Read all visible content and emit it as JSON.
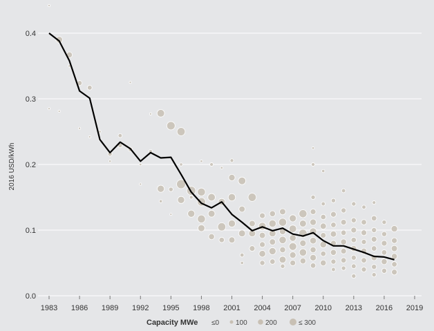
{
  "chart_data": {
    "type": "scatter",
    "ylabel": "2016 USD/kWh",
    "xlabel": "",
    "xlim": [
      1983,
      2019
    ],
    "ylim": [
      0,
      0.4
    ],
    "x_ticks": [
      "1983",
      "1986",
      "1989",
      "1992",
      "1995",
      "1998",
      "2001",
      "2004",
      "2007",
      "2010",
      "2013",
      "2016",
      "2019"
    ],
    "y_ticks": [
      "0.0",
      "0.1",
      "0.2",
      "0.3",
      "0.4"
    ],
    "grid": true,
    "colors": {
      "background": "#e5e6e8",
      "grid": "#ffffff",
      "bubble": "#c8c0b4",
      "bubble_light": "#ffffff",
      "line": "#000000"
    },
    "legend": {
      "title": "Capacity MWe",
      "placement": "bottom",
      "entries": [
        "≤0",
        "100",
        "200",
        "≤ 300"
      ]
    },
    "weighted_average": {
      "x": [
        1983,
        1984,
        1985,
        1986,
        1987,
        1988,
        1989,
        1990,
        1991,
        1992,
        1993,
        1994,
        1995,
        1996,
        1997,
        1998,
        1999,
        2000,
        2001,
        2002,
        2003,
        2004,
        2005,
        2006,
        2007,
        2008,
        2009,
        2010,
        2011,
        2012,
        2013,
        2014,
        2015,
        2016,
        2017
      ],
      "y": [
        0.4,
        0.388,
        0.358,
        0.312,
        0.301,
        0.238,
        0.218,
        0.234,
        0.224,
        0.205,
        0.218,
        0.21,
        0.211,
        0.185,
        0.158,
        0.141,
        0.134,
        0.143,
        0.124,
        0.112,
        0.099,
        0.105,
        0.099,
        0.103,
        0.094,
        0.091,
        0.096,
        0.084,
        0.076,
        0.076,
        0.071,
        0.066,
        0.06,
        0.059,
        0.055
      ]
    },
    "projects": [
      {
        "x": 1983,
        "y": 0.442,
        "c": 10
      },
      {
        "x": 1983,
        "y": 0.285,
        "c": 10
      },
      {
        "x": 1984,
        "y": 0.39,
        "c": 140
      },
      {
        "x": 1984,
        "y": 0.281,
        "c": 10
      },
      {
        "x": 1985,
        "y": 0.367,
        "c": 110
      },
      {
        "x": 1985,
        "y": 0.35,
        "c": 20
      },
      {
        "x": 1986,
        "y": 0.324,
        "c": 80
      },
      {
        "x": 1986,
        "y": 0.255,
        "c": 10
      },
      {
        "x": 1987,
        "y": 0.317,
        "c": 70
      },
      {
        "x": 1987,
        "y": 0.242,
        "c": 10
      },
      {
        "x": 1988,
        "y": 0.25,
        "c": 20
      },
      {
        "x": 1988,
        "y": 0.238,
        "c": 20
      },
      {
        "x": 1989,
        "y": 0.216,
        "c": 60
      },
      {
        "x": 1989,
        "y": 0.205,
        "c": 20
      },
      {
        "x": 1990,
        "y": 0.244,
        "c": 50
      },
      {
        "x": 1990,
        "y": 0.229,
        "c": 60
      },
      {
        "x": 1991,
        "y": 0.223,
        "c": 60
      },
      {
        "x": 1991,
        "y": 0.325,
        "c": 10
      },
      {
        "x": 1992,
        "y": 0.2,
        "c": 20
      },
      {
        "x": 1992,
        "y": 0.17,
        "c": 10
      },
      {
        "x": 1993,
        "y": 0.277,
        "c": 10
      },
      {
        "x": 1993,
        "y": 0.22,
        "c": 40
      },
      {
        "x": 1994,
        "y": 0.278,
        "c": 180
      },
      {
        "x": 1994,
        "y": 0.163,
        "c": 160
      },
      {
        "x": 1994,
        "y": 0.144,
        "c": 30
      },
      {
        "x": 1995,
        "y": 0.259,
        "c": 220
      },
      {
        "x": 1995,
        "y": 0.162,
        "c": 60
      },
      {
        "x": 1995,
        "y": 0.124,
        "c": 10
      },
      {
        "x": 1996,
        "y": 0.25,
        "c": 210
      },
      {
        "x": 1996,
        "y": 0.17,
        "c": 260
      },
      {
        "x": 1996,
        "y": 0.146,
        "c": 160
      },
      {
        "x": 1996,
        "y": 0.2,
        "c": 30
      },
      {
        "x": 1997,
        "y": 0.16,
        "c": 250
      },
      {
        "x": 1997,
        "y": 0.125,
        "c": 160
      },
      {
        "x": 1997,
        "y": 0.15,
        "c": 40
      },
      {
        "x": 1998,
        "y": 0.158,
        "c": 200
      },
      {
        "x": 1998,
        "y": 0.143,
        "c": 220
      },
      {
        "x": 1998,
        "y": 0.117,
        "c": 200
      },
      {
        "x": 1998,
        "y": 0.103,
        "c": 150
      },
      {
        "x": 1998,
        "y": 0.205,
        "c": 20
      },
      {
        "x": 1999,
        "y": 0.15,
        "c": 180
      },
      {
        "x": 1999,
        "y": 0.125,
        "c": 150
      },
      {
        "x": 1999,
        "y": 0.09,
        "c": 110
      },
      {
        "x": 1999,
        "y": 0.2,
        "c": 40
      },
      {
        "x": 2000,
        "y": 0.143,
        "c": 150
      },
      {
        "x": 2000,
        "y": 0.105,
        "c": 210
      },
      {
        "x": 2000,
        "y": 0.085,
        "c": 90
      },
      {
        "x": 2000,
        "y": 0.195,
        "c": 20
      },
      {
        "x": 2001,
        "y": 0.18,
        "c": 130
      },
      {
        "x": 2001,
        "y": 0.15,
        "c": 170
      },
      {
        "x": 2001,
        "y": 0.11,
        "c": 160
      },
      {
        "x": 2001,
        "y": 0.085,
        "c": 120
      },
      {
        "x": 2001,
        "y": 0.206,
        "c": 40
      },
      {
        "x": 2002,
        "y": 0.175,
        "c": 180
      },
      {
        "x": 2002,
        "y": 0.132,
        "c": 120
      },
      {
        "x": 2002,
        "y": 0.095,
        "c": 150
      },
      {
        "x": 2002,
        "y": 0.062,
        "c": 50
      },
      {
        "x": 2002,
        "y": 0.05,
        "c": 30
      },
      {
        "x": 2003,
        "y": 0.15,
        "c": 210
      },
      {
        "x": 2003,
        "y": 0.11,
        "c": 120
      },
      {
        "x": 2003,
        "y": 0.095,
        "c": 150
      },
      {
        "x": 2003,
        "y": 0.072,
        "c": 100
      },
      {
        "x": 2004,
        "y": 0.122,
        "c": 100
      },
      {
        "x": 2004,
        "y": 0.106,
        "c": 180
      },
      {
        "x": 2004,
        "y": 0.092,
        "c": 120
      },
      {
        "x": 2004,
        "y": 0.078,
        "c": 100
      },
      {
        "x": 2004,
        "y": 0.064,
        "c": 140
      },
      {
        "x": 2004,
        "y": 0.05,
        "c": 80
      },
      {
        "x": 2005,
        "y": 0.125,
        "c": 110
      },
      {
        "x": 2005,
        "y": 0.11,
        "c": 170
      },
      {
        "x": 2005,
        "y": 0.095,
        "c": 150
      },
      {
        "x": 2005,
        "y": 0.082,
        "c": 120
      },
      {
        "x": 2005,
        "y": 0.068,
        "c": 160
      },
      {
        "x": 2005,
        "y": 0.052,
        "c": 90
      },
      {
        "x": 2006,
        "y": 0.128,
        "c": 120
      },
      {
        "x": 2006,
        "y": 0.112,
        "c": 200
      },
      {
        "x": 2006,
        "y": 0.098,
        "c": 130
      },
      {
        "x": 2006,
        "y": 0.085,
        "c": 170
      },
      {
        "x": 2006,
        "y": 0.07,
        "c": 110
      },
      {
        "x": 2006,
        "y": 0.055,
        "c": 150
      },
      {
        "x": 2006,
        "y": 0.045,
        "c": 60
      },
      {
        "x": 2007,
        "y": 0.118,
        "c": 160
      },
      {
        "x": 2007,
        "y": 0.102,
        "c": 180
      },
      {
        "x": 2007,
        "y": 0.088,
        "c": 140
      },
      {
        "x": 2007,
        "y": 0.075,
        "c": 190
      },
      {
        "x": 2007,
        "y": 0.062,
        "c": 130
      },
      {
        "x": 2007,
        "y": 0.05,
        "c": 100
      },
      {
        "x": 2008,
        "y": 0.125,
        "c": 200
      },
      {
        "x": 2008,
        "y": 0.11,
        "c": 150
      },
      {
        "x": 2008,
        "y": 0.095,
        "c": 210
      },
      {
        "x": 2008,
        "y": 0.08,
        "c": 130
      },
      {
        "x": 2008,
        "y": 0.066,
        "c": 170
      },
      {
        "x": 2008,
        "y": 0.053,
        "c": 110
      },
      {
        "x": 2009,
        "y": 0.225,
        "c": 20
      },
      {
        "x": 2009,
        "y": 0.2,
        "c": 40
      },
      {
        "x": 2009,
        "y": 0.15,
        "c": 60
      },
      {
        "x": 2009,
        "y": 0.128,
        "c": 100
      },
      {
        "x": 2009,
        "y": 0.112,
        "c": 130
      },
      {
        "x": 2009,
        "y": 0.098,
        "c": 160
      },
      {
        "x": 2009,
        "y": 0.084,
        "c": 140
      },
      {
        "x": 2009,
        "y": 0.07,
        "c": 110
      },
      {
        "x": 2009,
        "y": 0.058,
        "c": 130
      },
      {
        "x": 2009,
        "y": 0.046,
        "c": 90
      },
      {
        "x": 2010,
        "y": 0.19,
        "c": 30
      },
      {
        "x": 2010,
        "y": 0.14,
        "c": 50
      },
      {
        "x": 2010,
        "y": 0.12,
        "c": 90
      },
      {
        "x": 2010,
        "y": 0.106,
        "c": 120
      },
      {
        "x": 2010,
        "y": 0.092,
        "c": 100
      },
      {
        "x": 2010,
        "y": 0.078,
        "c": 140
      },
      {
        "x": 2010,
        "y": 0.064,
        "c": 90
      },
      {
        "x": 2010,
        "y": 0.05,
        "c": 110
      },
      {
        "x": 2011,
        "y": 0.145,
        "c": 60
      },
      {
        "x": 2011,
        "y": 0.124,
        "c": 100
      },
      {
        "x": 2011,
        "y": 0.108,
        "c": 90
      },
      {
        "x": 2011,
        "y": 0.094,
        "c": 120
      },
      {
        "x": 2011,
        "y": 0.08,
        "c": 100
      },
      {
        "x": 2011,
        "y": 0.066,
        "c": 110
      },
      {
        "x": 2011,
        "y": 0.052,
        "c": 80
      },
      {
        "x": 2011,
        "y": 0.04,
        "c": 50
      },
      {
        "x": 2012,
        "y": 0.16,
        "c": 50
      },
      {
        "x": 2012,
        "y": 0.13,
        "c": 80
      },
      {
        "x": 2012,
        "y": 0.112,
        "c": 100
      },
      {
        "x": 2012,
        "y": 0.096,
        "c": 90
      },
      {
        "x": 2012,
        "y": 0.082,
        "c": 110
      },
      {
        "x": 2012,
        "y": 0.068,
        "c": 100
      },
      {
        "x": 2012,
        "y": 0.054,
        "c": 90
      },
      {
        "x": 2012,
        "y": 0.042,
        "c": 60
      },
      {
        "x": 2013,
        "y": 0.14,
        "c": 60
      },
      {
        "x": 2013,
        "y": 0.115,
        "c": 80
      },
      {
        "x": 2013,
        "y": 0.1,
        "c": 100
      },
      {
        "x": 2013,
        "y": 0.085,
        "c": 90
      },
      {
        "x": 2013,
        "y": 0.072,
        "c": 110
      },
      {
        "x": 2013,
        "y": 0.058,
        "c": 80
      },
      {
        "x": 2013,
        "y": 0.045,
        "c": 70
      },
      {
        "x": 2013,
        "y": 0.03,
        "c": 60
      },
      {
        "x": 2014,
        "y": 0.135,
        "c": 50
      },
      {
        "x": 2014,
        "y": 0.112,
        "c": 90
      },
      {
        "x": 2014,
        "y": 0.096,
        "c": 100
      },
      {
        "x": 2014,
        "y": 0.082,
        "c": 80
      },
      {
        "x": 2014,
        "y": 0.068,
        "c": 110
      },
      {
        "x": 2014,
        "y": 0.054,
        "c": 90
      },
      {
        "x": 2014,
        "y": 0.04,
        "c": 80
      },
      {
        "x": 2015,
        "y": 0.142,
        "c": 40
      },
      {
        "x": 2015,
        "y": 0.118,
        "c": 90
      },
      {
        "x": 2015,
        "y": 0.1,
        "c": 80
      },
      {
        "x": 2015,
        "y": 0.086,
        "c": 100
      },
      {
        "x": 2015,
        "y": 0.072,
        "c": 90
      },
      {
        "x": 2015,
        "y": 0.058,
        "c": 110
      },
      {
        "x": 2015,
        "y": 0.044,
        "c": 80
      },
      {
        "x": 2015,
        "y": 0.032,
        "c": 60
      },
      {
        "x": 2016,
        "y": 0.112,
        "c": 60
      },
      {
        "x": 2016,
        "y": 0.094,
        "c": 80
      },
      {
        "x": 2016,
        "y": 0.08,
        "c": 100
      },
      {
        "x": 2016,
        "y": 0.066,
        "c": 90
      },
      {
        "x": 2016,
        "y": 0.052,
        "c": 110
      },
      {
        "x": 2016,
        "y": 0.038,
        "c": 80
      },
      {
        "x": 2017,
        "y": 0.102,
        "c": 130
      },
      {
        "x": 2017,
        "y": 0.084,
        "c": 100
      },
      {
        "x": 2017,
        "y": 0.072,
        "c": 120
      },
      {
        "x": 2017,
        "y": 0.06,
        "c": 110
      },
      {
        "x": 2017,
        "y": 0.048,
        "c": 90
      },
      {
        "x": 2017,
        "y": 0.036,
        "c": 100
      }
    ]
  }
}
